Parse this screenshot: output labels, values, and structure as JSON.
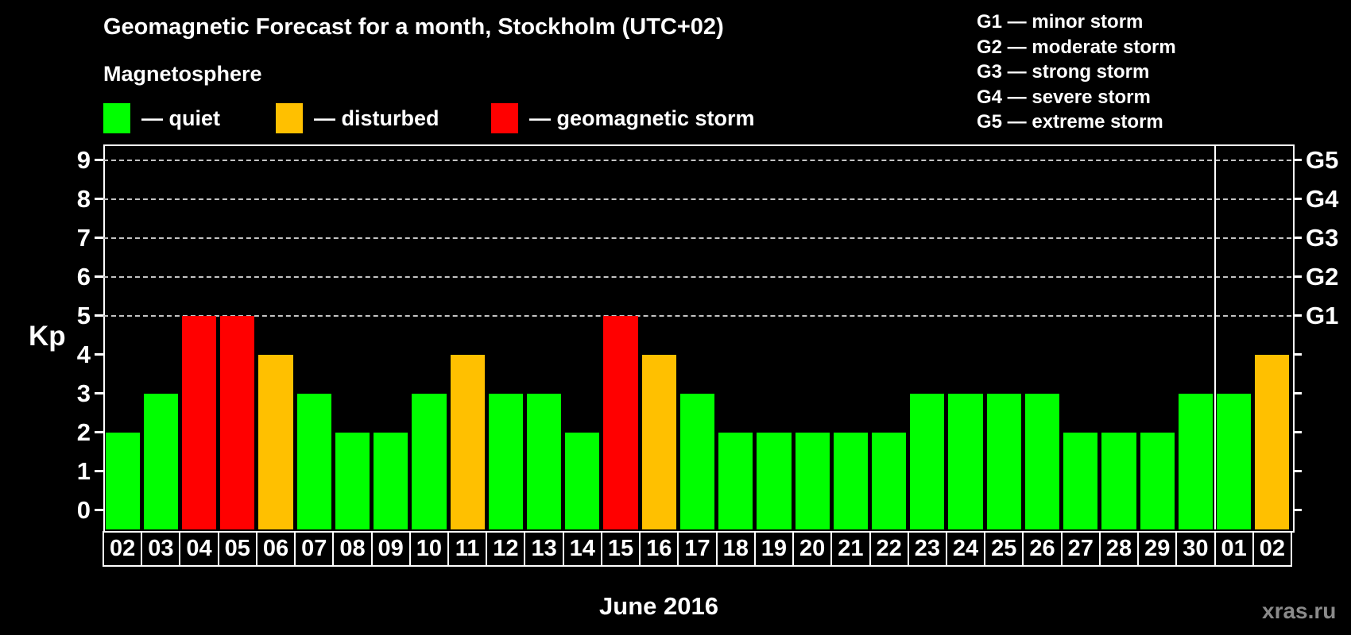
{
  "title": "Geomagnetic Forecast for a month, Stockholm (UTC+02)",
  "legend": {
    "heading": "Magnetosphere",
    "items": [
      {
        "key": "quiet",
        "label": "— quiet",
        "color": "#00ff00"
      },
      {
        "key": "disturbed",
        "label": "— disturbed",
        "color": "#ffc000"
      },
      {
        "key": "storm",
        "label": "— geomagnetic storm",
        "color": "#ff0000"
      }
    ]
  },
  "g_scale_legend": [
    "G1 — minor storm",
    "G2 — moderate storm",
    "G3 — strong storm",
    "G4 — severe storm",
    "G5 — extreme storm"
  ],
  "chart_data": {
    "type": "bar",
    "title": "Geomagnetic Forecast for a month, Stockholm (UTC+02)",
    "ylabel": "Kp",
    "xlabel": "June 2016",
    "ylim": [
      -0.5,
      9.4
    ],
    "yticks": [
      0,
      1,
      2,
      3,
      4,
      5,
      6,
      7,
      8,
      9
    ],
    "gridlines_at": [
      5,
      6,
      7,
      8,
      9
    ],
    "grid_style": "dashed horizontal, gray, at storm levels only",
    "right_axis_labels": [
      {
        "kp": 5,
        "label": "G1"
      },
      {
        "kp": 6,
        "label": "G2"
      },
      {
        "kp": 7,
        "label": "G3"
      },
      {
        "kp": 8,
        "label": "G4"
      },
      {
        "kp": 9,
        "label": "G5"
      }
    ],
    "status_colors": {
      "quiet": "#00ff00",
      "disturbed": "#ffc000",
      "storm": "#ff0000"
    },
    "categories": [
      "02",
      "03",
      "04",
      "05",
      "06",
      "07",
      "08",
      "09",
      "10",
      "11",
      "12",
      "13",
      "14",
      "15",
      "16",
      "17",
      "18",
      "19",
      "20",
      "21",
      "22",
      "23",
      "24",
      "25",
      "26",
      "27",
      "28",
      "29",
      "30",
      "01",
      "02"
    ],
    "values": [
      2,
      3,
      5,
      5,
      4,
      3,
      2,
      2,
      3,
      4,
      3,
      3,
      2,
      5,
      4,
      3,
      2,
      2,
      2,
      2,
      2,
      3,
      3,
      3,
      3,
      2,
      2,
      2,
      3,
      3,
      4
    ],
    "statuses": [
      "quiet",
      "quiet",
      "storm",
      "storm",
      "disturbed",
      "quiet",
      "quiet",
      "quiet",
      "quiet",
      "disturbed",
      "quiet",
      "quiet",
      "quiet",
      "storm",
      "disturbed",
      "quiet",
      "quiet",
      "quiet",
      "quiet",
      "quiet",
      "quiet",
      "quiet",
      "quiet",
      "quiet",
      "quiet",
      "quiet",
      "quiet",
      "quiet",
      "quiet",
      "quiet",
      "disturbed"
    ],
    "month_separator_after_index": 28
  },
  "watermark": "xras.ru"
}
